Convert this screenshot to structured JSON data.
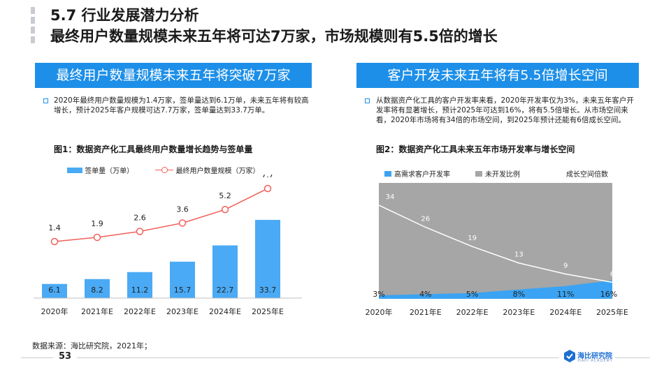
{
  "header": {
    "title_line1": "5.7 行业发展潜力分析",
    "title_line2": "最终用户数量规模未来五年将可达7万家，市场规模则有5.5倍的增长"
  },
  "left": {
    "banner": "最终用户数量规模未来五年将突破7万家",
    "paragraph": "2020年最终用户数量规模为1.4万家，签单量达到6.1万单，未来五年将有较高增长，预计2025年客户规模可达7.7万家，签单量达到33.7万单。",
    "figure_title": "图1：数据资产化工具最终用户数量增长趋势与签单量"
  },
  "right": {
    "banner": "客户开发未来五年将有5.5倍增长空间",
    "paragraph": "从数据资产化工具的客户开发率来看，2020年开发率仅为3%，未来五年客户开发率将有显著增长，预计2025年可达到16%，将有5.5倍增长。从市场空间来看，2020年市场将有34倍的市场空间，到2025年预计还能有6倍成长空间。",
    "figure_title": "图2：数据资产化工具未来五年市场开发率与增长空间"
  },
  "chart_data": [
    {
      "type": "bar",
      "categories": [
        "2020年",
        "2021年E",
        "2022年E",
        "2023年E",
        "2024年E",
        "2025年E"
      ],
      "series": [
        {
          "name": "签单量（万单）",
          "type": "bar",
          "values": [
            6.1,
            8.2,
            11.2,
            15.7,
            22.7,
            33.7
          ],
          "color": "#4aaaf5"
        },
        {
          "name": "最终用户数量规模（万家）",
          "type": "line",
          "values": [
            1.4,
            1.9,
            2.6,
            3.6,
            5.2,
            7.7
          ],
          "color": "#f0605a"
        }
      ],
      "ylim": [
        0,
        40
      ],
      "grid": false,
      "legend": "top"
    },
    {
      "type": "area",
      "categories": [
        "2020年",
        "2021年E",
        "2022年E",
        "2023年E",
        "2024年E",
        "2025年E"
      ],
      "series": [
        {
          "name": "高需求客户开发率",
          "values": [
            3,
            4,
            5,
            8,
            11,
            16
          ],
          "labels": [
            "3%",
            "4%",
            "5%",
            "8%",
            "11%",
            "16%"
          ],
          "color": "#3aa3f3"
        },
        {
          "name": "未开发比例",
          "values": [
            97,
            96,
            95,
            92,
            89,
            84
          ],
          "color": "#a6a6a6"
        },
        {
          "name": "成长空间倍数",
          "type": "line",
          "values": [
            34,
            26,
            19,
            13,
            9,
            6
          ],
          "color": "#ffffff"
        }
      ],
      "ylim": [
        0,
        100
      ],
      "grid": false,
      "legend": "top"
    }
  ],
  "footer": {
    "source": "数据来源：海比研究院，2021年；",
    "page_number": "53",
    "logo_text": "海比研究院",
    "logo_sub": "HAPI ACADEMY"
  },
  "colors": {
    "accent": "#1d8fe8",
    "bar": "#4aaaf5",
    "line": "#f0605a",
    "area_blue": "#3aa3f3",
    "area_gray": "#a6a6a6"
  }
}
